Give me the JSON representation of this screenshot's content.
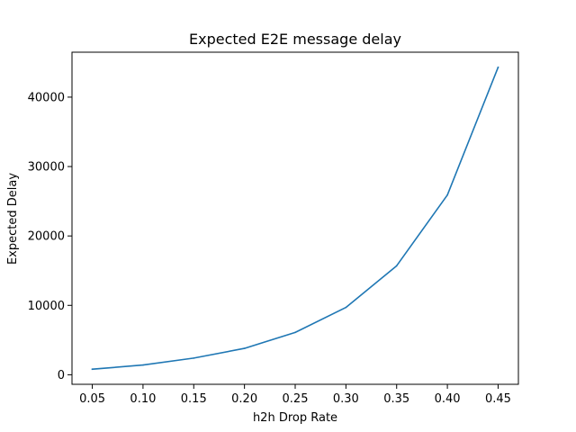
{
  "chart_data": {
    "type": "line",
    "title": "Expected E2E message delay",
    "xlabel": "h2h Drop Rate",
    "ylabel": "Expected Delay",
    "x": [
      0.05,
      0.1,
      0.15,
      0.2,
      0.25,
      0.3,
      0.35,
      0.4,
      0.45
    ],
    "series": [
      {
        "values": [
          800,
          1400,
          2400,
          3800,
          6100,
          9700,
          15700,
          25900,
          44300
        ],
        "color": "#1f77b4"
      }
    ],
    "xticks": [
      0.05,
      0.1,
      0.15,
      0.2,
      0.25,
      0.3,
      0.35,
      0.4,
      0.45
    ],
    "xtick_labels": [
      "0.05",
      "0.10",
      "0.15",
      "0.20",
      "0.25",
      "0.30",
      "0.35",
      "0.40",
      "0.45"
    ],
    "yticks": [
      0,
      10000,
      20000,
      30000,
      40000
    ],
    "ytick_labels": [
      "0",
      "10000",
      "20000",
      "30000",
      "40000"
    ],
    "xlim": [
      0.03,
      0.47
    ],
    "ylim": [
      -1375,
      46475
    ],
    "grid": false,
    "legend": false
  }
}
